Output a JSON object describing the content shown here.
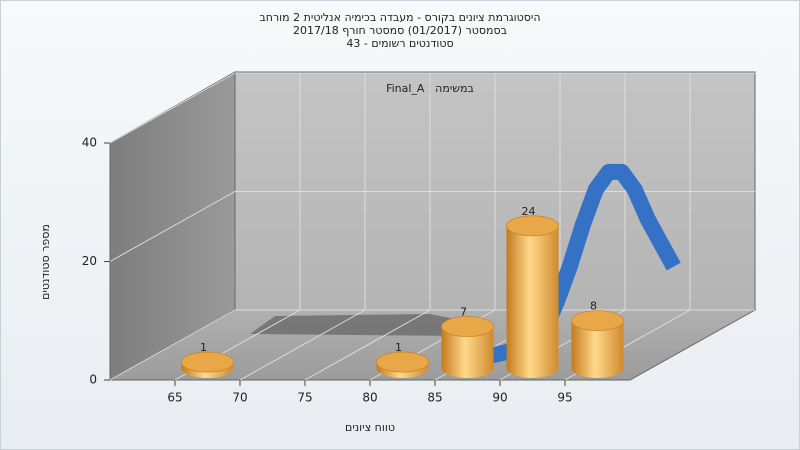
{
  "chart_data": {
    "type": "histogram",
    "title_lines": [
      "היסטוגרמת ציונים בקורס - מעבדה בכימיה אנליטית 2 מורחב",
      "בסמסטר  (01/2017)  סמסטר חורף 2017/18",
      "סטודנטים רשומים - 43"
    ],
    "annotation": "במשימה : Final_A",
    "xlabel": "טווח ציונים",
    "ylabel": "מספר סטודנטים",
    "bins": [
      65,
      70,
      75,
      80,
      85,
      90,
      95,
      100
    ],
    "values": [
      1,
      0,
      0,
      1,
      7,
      24,
      8
    ],
    "color": "#e9a847",
    "xlim": [
      60,
      100
    ],
    "xticks": [
      65,
      70,
      75,
      80,
      85,
      90,
      95
    ],
    "ylim": [
      0,
      40
    ],
    "yticks": [
      0,
      20,
      40
    ],
    "grid": true,
    "curve": {
      "x": [
        86,
        88,
        90,
        91,
        92,
        93,
        94,
        95,
        96,
        97,
        98,
        99,
        100
      ],
      "values": [
        0,
        1,
        4,
        9,
        15,
        22,
        28,
        31,
        31,
        28,
        23,
        19,
        15
      ],
      "color": "#3572c6"
    }
  }
}
